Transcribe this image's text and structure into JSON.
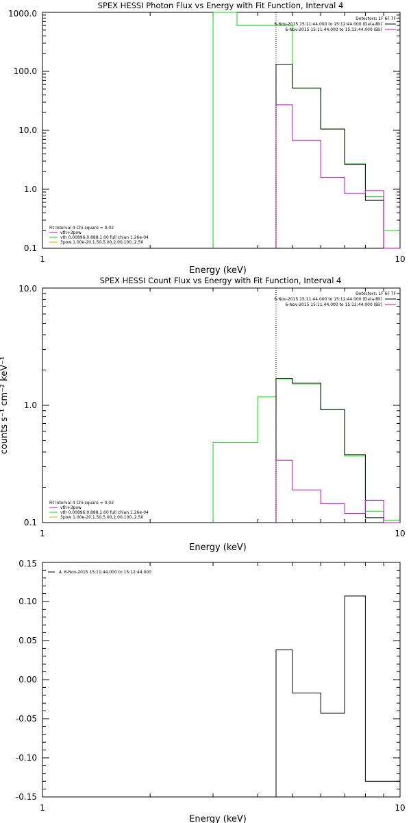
{
  "colors": {
    "green": "#00dd00",
    "magenta": "#cc00cc",
    "black": "#000000",
    "orange": "#ddaa00"
  },
  "chart_data": [
    {
      "type": "line",
      "title": "SPEX HESSI Photon Flux vs Energy with Fit Function, Interval 4",
      "xlabel": "Energy (keV)",
      "ylabel": "",
      "xscale": "log",
      "yscale": "log",
      "xlim": [
        1,
        10
      ],
      "ylim": [
        0.1,
        1000
      ],
      "x_ticks": [
        "1",
        "10"
      ],
      "y_ticks": [
        "0.1",
        "1.0",
        "10.0",
        "100.0",
        "1000.0"
      ],
      "vline_x": 4.5,
      "header": {
        "detectors": "Detectors: 1F 6F 7F",
        "lines": [
          {
            "text": "6-Nov-2015 15:11:44.000 to 15:12:44.000 (Data-Bk)",
            "color": "black"
          },
          {
            "text": "6-Nov-2015 15:11:44.000 to 15:12:44.000 (Bk)",
            "color": "magenta"
          }
        ]
      },
      "legend": {
        "title": "Fit Interval  4   Chi-square = 0.02",
        "items": [
          {
            "text": "vth+3pow",
            "color": "magenta"
          },
          {
            "text": "vth 0.00896,0.888,1.00  full chian 1.26e-04",
            "color": "green"
          },
          {
            "text": "3pow 1.00e-20,1.50,5.00,2.00,100.,2.50",
            "color": "orange"
          }
        ]
      },
      "series": [
        {
          "color": "green",
          "edges": [
            3,
            3.5,
            4.5,
            5,
            6,
            7,
            8,
            9,
            10
          ],
          "values": [
            1000,
            600,
            600,
            52,
            10.5,
            2.7,
            0.75,
            0.2
          ],
          "start_bottom": true
        },
        {
          "color": "black",
          "edges": [
            4.5,
            5,
            6,
            7,
            8,
            9,
            10
          ],
          "values": [
            130,
            52,
            10.5,
            2.65,
            0.65,
            0.1
          ],
          "start_bottom": true
        },
        {
          "color": "magenta",
          "edges": [
            4.5,
            5,
            6,
            7,
            8,
            9,
            10
          ],
          "values": [
            27,
            6.8,
            1.6,
            0.85,
            0.95,
            0.1
          ],
          "start_bottom": true
        }
      ]
    },
    {
      "type": "line",
      "title": "SPEX HESSI Count Flux vs Energy with Fit Function, Interval 4",
      "xlabel": "Energy (keV)",
      "ylabel": "counts s⁻¹ cm⁻² keV⁻¹",
      "xscale": "log",
      "yscale": "log",
      "xlim": [
        1,
        10
      ],
      "ylim": [
        0.1,
        10
      ],
      "x_ticks": [
        "1",
        "10"
      ],
      "y_ticks": [
        "0.1",
        "1.0",
        "10.0"
      ],
      "vline_x": 4.5,
      "header": {
        "detectors": "Detectors: 1F 6F 7F",
        "lines": [
          {
            "text": "6-Nov-2015 15:11:44.000 to 15:12:44.000 (Data-Bk)",
            "color": "black"
          },
          {
            "text": "6-Nov-2015 15:11:44.000 to 15:12:44.000 (Bk)",
            "color": "magenta"
          }
        ]
      },
      "legend": {
        "title": "Fit Interval  4   Chi-square = 0.02",
        "items": [
          {
            "text": "vth+3pow",
            "color": "magenta"
          },
          {
            "text": "vth 0.00896,0.888,1.00  full chian 1.26e-04",
            "color": "green"
          },
          {
            "text": "3pow 1.00e-20,1.50,5.00,2.00,100.,2.50",
            "color": "orange"
          }
        ]
      },
      "series": [
        {
          "color": "green",
          "edges": [
            3,
            3.5,
            4,
            4.5,
            5,
            6,
            7,
            8,
            9,
            10
          ],
          "values": [
            0.48,
            0.48,
            1.18,
            1.68,
            1.52,
            0.92,
            0.37,
            0.125,
            0.105
          ],
          "start_bottom": true
        },
        {
          "color": "black",
          "edges": [
            4.5,
            5,
            6,
            7,
            8,
            9,
            10
          ],
          "values": [
            1.7,
            1.55,
            0.92,
            0.38,
            0.11,
            0.1
          ],
          "start_bottom": true
        },
        {
          "color": "magenta",
          "edges": [
            4.5,
            5,
            6,
            7,
            8,
            9,
            10
          ],
          "values": [
            0.34,
            0.19,
            0.145,
            0.12,
            0.155,
            0.1
          ],
          "start_bottom": true
        }
      ]
    },
    {
      "type": "line",
      "title": "",
      "xlabel": "Energy (keV)",
      "ylabel": "",
      "xscale": "log",
      "yscale": "linear",
      "xlim": [
        1,
        10
      ],
      "ylim": [
        -0.15,
        0.15
      ],
      "x_ticks": [
        "1",
        "10"
      ],
      "y_ticks": [
        "-0.15",
        "-0.10",
        "-0.05",
        "0.00",
        "0.05",
        "0.10",
        "0.15"
      ],
      "legend_top": {
        "text": "4.  6-Nov-2015 15:11:44.000 to 15:12:44.000",
        "color": "black"
      },
      "series": [
        {
          "color": "black",
          "edges": [
            4.5,
            5,
            6,
            7,
            8,
            9,
            10
          ],
          "values": [
            0.038,
            -0.017,
            -0.043,
            0.107,
            -0.13,
            -0.13
          ],
          "start_bottom": true
        }
      ]
    }
  ]
}
